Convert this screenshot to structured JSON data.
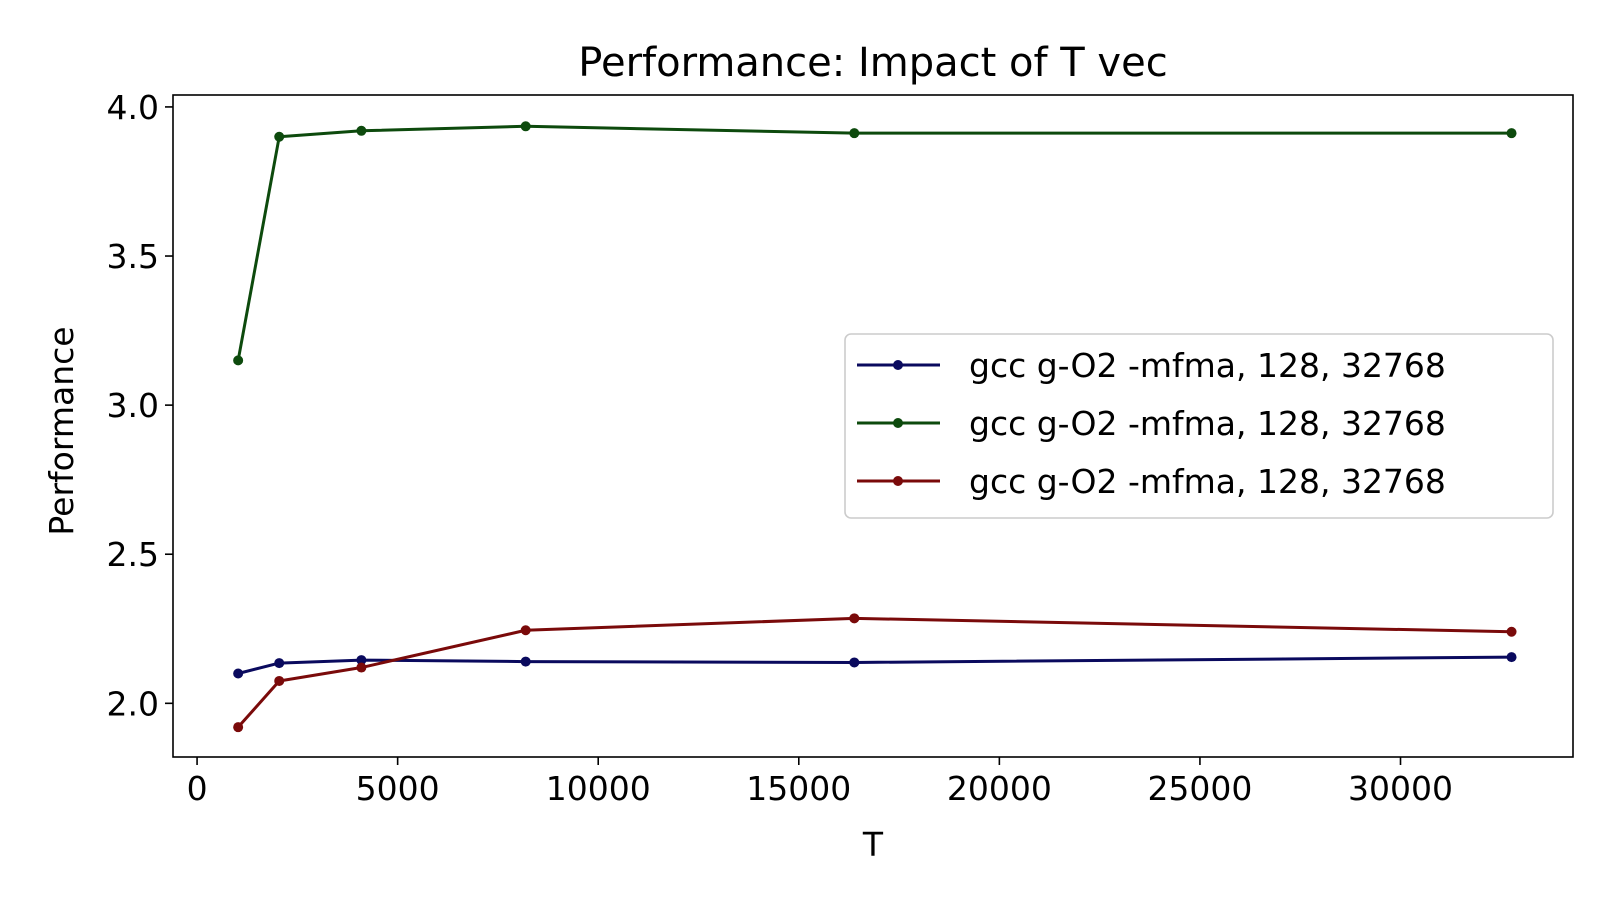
{
  "chart_data": {
    "type": "line",
    "title": "Performance: Impact of T vec",
    "xlabel": "T",
    "ylabel": "Performance",
    "xlim": [
      -600,
      34300
    ],
    "ylim": [
      1.82,
      4.04
    ],
    "xticks": [
      0,
      5000,
      10000,
      15000,
      20000,
      25000,
      30000
    ],
    "yticks": [
      2.0,
      2.5,
      3.0,
      3.5,
      4.0
    ],
    "xtick_labels": [
      "0",
      "5000",
      "10000",
      "15000",
      "20000",
      "25000",
      "30000"
    ],
    "ytick_labels": [
      "2.0",
      "2.5",
      "3.0",
      "3.5",
      "4.0"
    ],
    "grid": false,
    "legend_position": "center-right",
    "x": [
      1024,
      2048,
      4096,
      8192,
      16384,
      32768
    ],
    "series": [
      {
        "name": "gcc g-O2 -mfma, 128, 32768",
        "color": "#0a0a5e",
        "values": [
          2.1,
          2.135,
          2.145,
          2.14,
          2.137,
          2.155
        ]
      },
      {
        "name": "gcc g-O2 -mfma, 128, 32768",
        "color": "#0d4a0d",
        "values": [
          3.15,
          3.9,
          3.92,
          3.935,
          3.912,
          3.912
        ]
      },
      {
        "name": "gcc g-O2 -mfma, 128, 32768",
        "color": "#7a0a0a",
        "values": [
          1.92,
          2.075,
          2.12,
          2.245,
          2.285,
          2.24
        ]
      }
    ]
  }
}
